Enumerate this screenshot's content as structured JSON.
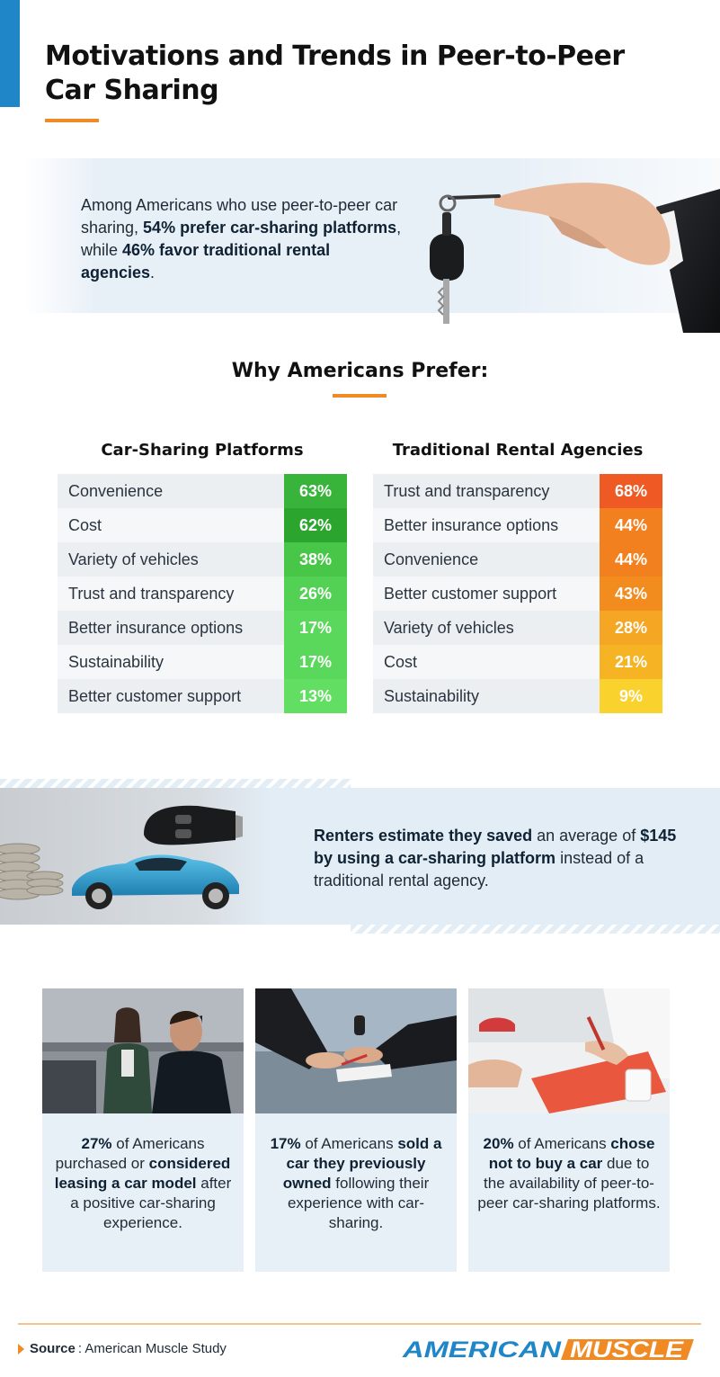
{
  "header": {
    "title_line1": "Motivations and Trends in Peer-to-Peer",
    "title_line2": "Car Sharing"
  },
  "intro": {
    "text_1": "Among Americans who use peer-to-peer car sharing, ",
    "bold_1": "54% prefer car-sharing platforms",
    "text_2": ", while ",
    "bold_2": "46% favor traditional rental agencies",
    "text_3": "."
  },
  "section_title": "Why Americans Prefer:",
  "chart_data": [
    {
      "type": "table",
      "title": "Car-Sharing Platforms",
      "categories": [
        "Convenience",
        "Cost",
        "Variety of vehicles",
        "Trust and transparency",
        "Better insurance options",
        "Sustainability",
        "Better customer support"
      ],
      "values": [
        63,
        62,
        38,
        26,
        17,
        17,
        13
      ],
      "labels": [
        "63%",
        "62%",
        "38%",
        "26%",
        "17%",
        "17%",
        "13%"
      ],
      "colors": [
        "#38b43a",
        "#2ca52f",
        "#47c648",
        "#52d154",
        "#5ad85b",
        "#5ad85b",
        "#62df63"
      ]
    },
    {
      "type": "table",
      "title": "Traditional Rental Agencies",
      "categories": [
        "Trust and transparency",
        "Better insurance options",
        "Convenience",
        "Better customer support",
        "Variety of vehicles",
        "Cost",
        "Sustainability"
      ],
      "values": [
        68,
        44,
        44,
        43,
        28,
        21,
        9
      ],
      "labels": [
        "68%",
        "44%",
        "44%",
        "43%",
        "28%",
        "21%",
        "9%"
      ],
      "colors": [
        "#ef5a24",
        "#f2801f",
        "#f2801f",
        "#f28c1f",
        "#f5a623",
        "#f6b424",
        "#f9d22e"
      ]
    }
  ],
  "savings": {
    "bold_1": "Renters estimate they saved",
    "text_1": " an average of ",
    "bold_2": "$145 by using a car-sharing platform",
    "text_2": " instead of a traditional rental agency."
  },
  "cards": [
    {
      "bold_1": "27%",
      "text_1": " of Americans purchased or ",
      "bold_2": "considered leasing a car model",
      "text_2": " after a positive car-sharing experience."
    },
    {
      "bold_1": "17%",
      "text_1": " of Americans ",
      "bold_2": "sold a car they previously owned",
      "text_2": " following their experience with car-sharing."
    },
    {
      "bold_1": "20%",
      "text_1": " of Americans ",
      "bold_2": "chose not to buy a car",
      "text_2": " due to the availability of peer-to-peer car-sharing platforms."
    }
  ],
  "footer": {
    "source_label": "Source",
    "source_text": ": American Muscle Study",
    "logo_part1": "AMERICAN",
    "logo_part2": "MUSCLE"
  },
  "colors": {
    "accent_blue": "#1f86c8",
    "accent_orange": "#f08a24",
    "band_bg": "#e8f0f7"
  }
}
